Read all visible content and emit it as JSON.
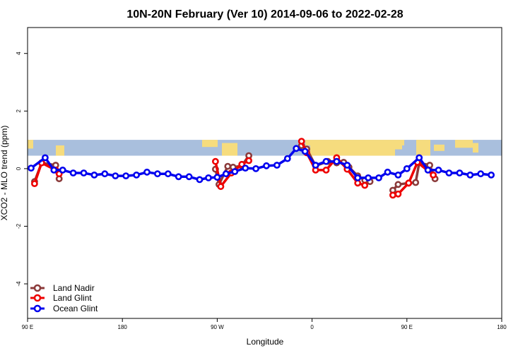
{
  "chart_data": {
    "type": "line",
    "title": "10N-20N February (Ver 10)   2014-09-06 to 2022-02-28",
    "xlabel": "Longitude",
    "ylabel": "XCO2 - MLO trend (ppm)",
    "xlim": [
      -90,
      180
    ],
    "ylim": [
      -5.2,
      4.9
    ],
    "x_ticks": [
      {
        "value": -90,
        "label": "90 E"
      },
      {
        "value": -36,
        "label": "180"
      },
      {
        "value": 18,
        "label": "90 W"
      },
      {
        "value": 72,
        "label": "0"
      },
      {
        "value": 126,
        "label": "90 E"
      },
      {
        "value": 180,
        "label": "180"
      }
    ],
    "y_ticks": [
      {
        "value": -4,
        "label": "-4"
      },
      {
        "value": -2,
        "label": "-2"
      },
      {
        "value": 0,
        "label": "0"
      },
      {
        "value": 2,
        "label": "2"
      },
      {
        "value": 4,
        "label": "4"
      }
    ],
    "map_band": {
      "y_range": [
        0.45,
        1.0
      ],
      "ocean_color": "#a9bfdd",
      "land_color": "#f6dc7e"
    },
    "series": [
      {
        "name": "Land Nadir",
        "color": "#8b3a3a",
        "segments": [
          [
            [
              -86,
              -0.45
            ],
            [
              -82,
              0.2
            ],
            [
              -74,
              0.12
            ],
            [
              -72,
              -0.35
            ]
          ],
          [
            [
              17,
              -0.02
            ],
            [
              19,
              -0.55
            ],
            [
              24,
              0.08
            ],
            [
              27,
              0.05
            ],
            [
              32,
              0.1
            ],
            [
              36,
              0.45
            ]
          ],
          [
            [
              66,
              0.8
            ],
            [
              69,
              0.68
            ],
            [
              74,
              0.1
            ],
            [
              81,
              0.25
            ],
            [
              86,
              0.2
            ],
            [
              90,
              0.22
            ],
            [
              93,
              0.05
            ],
            [
              98,
              -0.25
            ],
            [
              102,
              -0.4
            ],
            [
              105,
              -0.45
            ]
          ],
          [
            [
              118,
              -0.75
            ],
            [
              121,
              -0.55
            ],
            [
              127,
              -0.5
            ],
            [
              131,
              -0.48
            ],
            [
              133,
              0.2
            ],
            [
              139,
              0.12
            ],
            [
              142,
              -0.35
            ]
          ]
        ]
      },
      {
        "name": "Land Glint",
        "color": "#ee0000",
        "segments": [
          [
            [
              -86,
              -0.52
            ],
            [
              -82,
              0.2
            ],
            [
              -74,
              -0.05
            ],
            [
              -72,
              -0.18
            ]
          ],
          [
            [
              17,
              0.25
            ],
            [
              20,
              -0.62
            ],
            [
              26,
              -0.15
            ],
            [
              32,
              0.15
            ],
            [
              36,
              0.28
            ]
          ],
          [
            [
              66,
              0.95
            ],
            [
              69,
              0.55
            ],
            [
              74,
              -0.05
            ],
            [
              80,
              -0.05
            ],
            [
              86,
              0.38
            ],
            [
              92,
              -0.02
            ],
            [
              98,
              -0.5
            ],
            [
              102,
              -0.58
            ]
          ],
          [
            [
              118,
              -0.92
            ],
            [
              121,
              -0.88
            ],
            [
              127,
              -0.5
            ],
            [
              132,
              0.22
            ],
            [
              141,
              -0.22
            ]
          ]
        ]
      },
      {
        "name": "Ocean Glint",
        "color": "#0000ee",
        "segments": [
          [
            [
              -88,
              0.02
            ],
            [
              -80,
              0.38
            ],
            [
              -75,
              -0.05
            ],
            [
              -70,
              -0.05
            ],
            [
              -64,
              -0.15
            ],
            [
              -58,
              -0.15
            ],
            [
              -52,
              -0.22
            ],
            [
              -46,
              -0.18
            ],
            [
              -40,
              -0.25
            ],
            [
              -34,
              -0.25
            ],
            [
              -28,
              -0.22
            ],
            [
              -22,
              -0.12
            ],
            [
              -16,
              -0.18
            ],
            [
              -10,
              -0.18
            ],
            [
              -4,
              -0.28
            ],
            [
              2,
              -0.28
            ],
            [
              8,
              -0.38
            ],
            [
              13,
              -0.32
            ],
            [
              18,
              -0.3
            ],
            [
              23,
              -0.18
            ],
            [
              28,
              -0.1
            ],
            [
              34,
              0.02
            ],
            [
              40,
              0.0
            ],
            [
              46,
              0.1
            ],
            [
              52,
              0.12
            ],
            [
              58,
              0.35
            ],
            [
              63,
              0.7
            ],
            [
              68,
              0.6
            ],
            [
              74,
              0.12
            ],
            [
              80,
              0.25
            ],
            [
              86,
              0.25
            ],
            [
              92,
              0.12
            ],
            [
              98,
              -0.32
            ],
            [
              104,
              -0.32
            ],
            [
              110,
              -0.32
            ],
            [
              115,
              -0.12
            ],
            [
              121,
              -0.22
            ],
            [
              126,
              0.0
            ],
            [
              133,
              0.38
            ],
            [
              138,
              -0.05
            ],
            [
              144,
              -0.05
            ],
            [
              150,
              -0.15
            ],
            [
              156,
              -0.15
            ],
            [
              162,
              -0.22
            ],
            [
              168,
              -0.18
            ],
            [
              174,
              -0.22
            ]
          ]
        ]
      }
    ],
    "legend_position": "bottom-left"
  }
}
